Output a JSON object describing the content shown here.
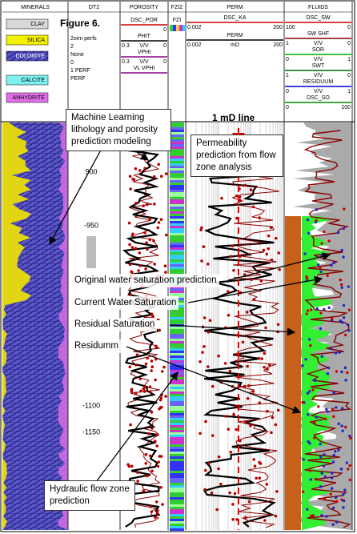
{
  "figure_label": "Figure 6.",
  "tracks": [
    "MINERALS",
    "DT2",
    "POROSITY",
    "FZI2",
    "PERM",
    "FLUIDS"
  ],
  "minerals": [
    "CLAY",
    "SILICA",
    "DOLOMITE",
    "CALCITE",
    "ANHYDRITE"
  ],
  "dt2_header": [
    "2oim perfs",
    "2",
    "None",
    "0",
    "1 PERF",
    "PERF"
  ],
  "porosity_header": [
    {
      "name": "DSC_POR",
      "scale": [
        "0"
      ]
    },
    {
      "name": "PHIT",
      "scale": [
        "0.3",
        "V/V",
        "0"
      ]
    },
    {
      "name": "VPHI",
      "scale": [
        "0.3",
        "V/V",
        "0"
      ]
    },
    {
      "name": "VL VPHI",
      "scale": []
    }
  ],
  "fzi_header": "FZI",
  "perm_header": [
    {
      "name": "DSC_KA",
      "scale": [
        "0.002",
        "200"
      ]
    },
    {
      "name": "PERM",
      "scale": [
        "0.002",
        "mD",
        "200"
      ]
    }
  ],
  "fluids_header": [
    {
      "name": "DSC_SW",
      "scale": [
        "100",
        "0"
      ]
    },
    {
      "name": "SW SHF",
      "scale": [
        "1",
        "V/V",
        "0"
      ]
    },
    {
      "name": "SOR",
      "scale": [
        "0",
        "V/V",
        "1"
      ]
    },
    {
      "name": "SWT",
      "scale": [
        "1",
        "V/V",
        "0"
      ]
    },
    {
      "name": "RESIDUUM",
      "scale": [
        "0",
        "V/V",
        "1"
      ]
    },
    {
      "name": "DSC_SO",
      "scale": [
        "0",
        "100"
      ]
    }
  ],
  "depths": [
    900,
    -950,
    -1100,
    -1150
  ],
  "annotations": {
    "ml": "Machine Learning lithology and porosity prediction modeling",
    "one_md": "1 mD line",
    "perm": "Permeability prediction from flow zone analysis",
    "osw": "Original water saturation prediction",
    "csw": "Current Water Saturation",
    "rs": "Residual Saturation",
    "res": "Residumm",
    "hfz": "Hydraulic flow zone prediction"
  }
}
